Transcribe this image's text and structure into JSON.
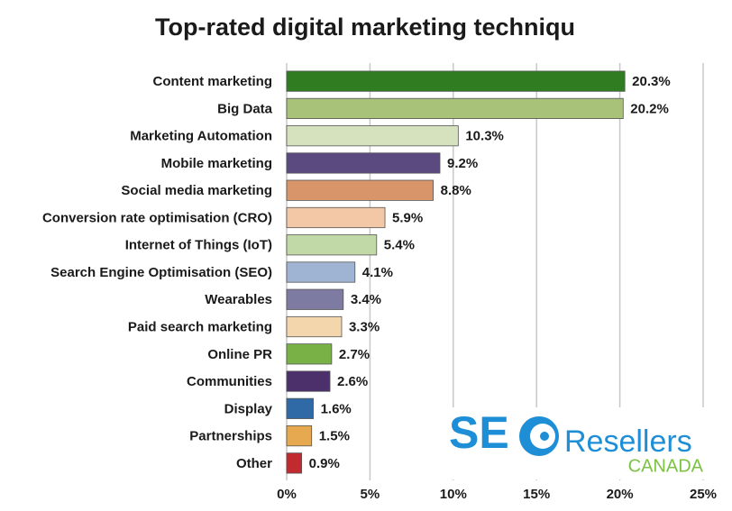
{
  "chart_data": {
    "type": "bar",
    "orientation": "horizontal",
    "title": "Top-rated digital marketing techniqu",
    "categories": [
      "Content marketing",
      "Big Data",
      "Marketing Automation",
      "Mobile marketing",
      "Social media marketing",
      "Conversion rate optimisation (CRO)",
      "Internet of Things (IoT)",
      "Search Engine Optimisation (SEO)",
      "Wearables",
      "Paid search marketing",
      "Online PR",
      "Communities",
      "Display",
      "Partnerships",
      "Other"
    ],
    "values": [
      20.3,
      20.2,
      10.3,
      9.2,
      8.8,
      5.9,
      5.4,
      4.1,
      3.4,
      3.3,
      2.7,
      2.6,
      1.6,
      1.5,
      0.9
    ],
    "value_labels": [
      "20.3%",
      "20.2%",
      "10.3%",
      "9.2%",
      "8.8%",
      "5.9%",
      "5.4%",
      "4.1%",
      "3.4%",
      "3.3%",
      "2.7%",
      "2.6%",
      "1.6%",
      "1.5%",
      "0.9%"
    ],
    "colors": [
      "#2f7d20",
      "#a9c27a",
      "#d6e2bd",
      "#5b4a80",
      "#d9956a",
      "#f3c8a6",
      "#c0d9a6",
      "#9fb3d2",
      "#7e7ba2",
      "#f4d6ad",
      "#79b147",
      "#4c306c",
      "#2f6aa6",
      "#e6a94f",
      "#c12a2e"
    ],
    "xlim": [
      0,
      25
    ],
    "xticks": [
      {
        "value": 0,
        "label": "0%"
      },
      {
        "value": 5,
        "label": "5%"
      },
      {
        "value": 10,
        "label": "10%"
      },
      {
        "value": 15,
        "label": "15%"
      },
      {
        "value": 20,
        "label": "20%"
      },
      {
        "value": 25,
        "label": "25%"
      }
    ],
    "grid": true
  },
  "logo": {
    "brand": "SE",
    "name": "Resellers",
    "region": "CANADA"
  }
}
